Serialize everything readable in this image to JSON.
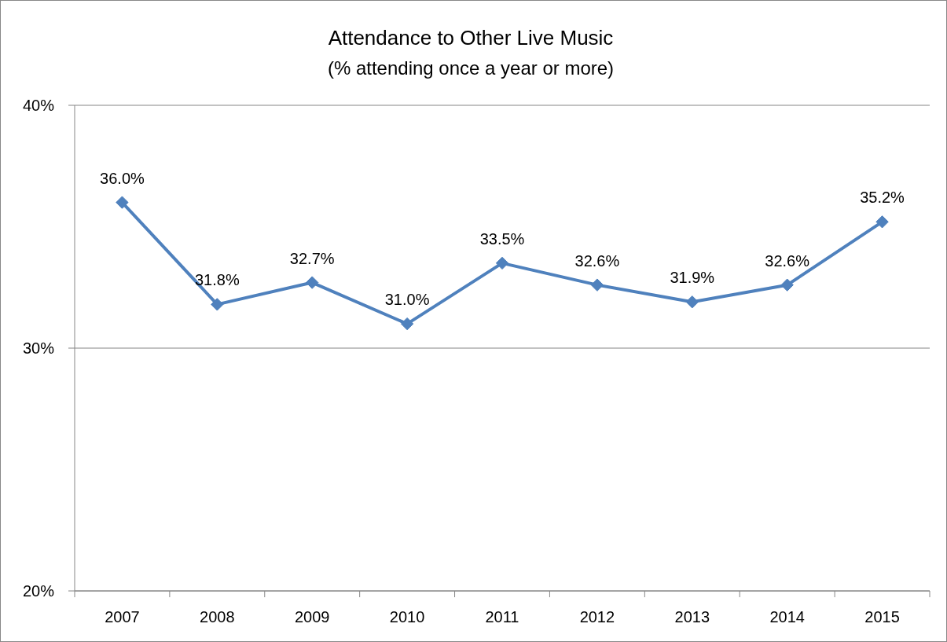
{
  "chart_data": {
    "type": "line",
    "title": "Attendance to Other Live Music",
    "subtitle": "(% attending once a year or more)",
    "categories": [
      "2007",
      "2008",
      "2009",
      "2010",
      "2011",
      "2012",
      "2013",
      "2014",
      "2015"
    ],
    "series": [
      {
        "color": "#4f81bd",
        "values": [
          36.0,
          31.8,
          32.7,
          31.0,
          33.5,
          32.6,
          31.9,
          32.6,
          35.2
        ],
        "value_labels": [
          "36.0%",
          "31.8%",
          "32.7%",
          "31.0%",
          "33.5%",
          "32.6%",
          "31.9%",
          "32.6%",
          "35.2%"
        ]
      }
    ],
    "ylim": [
      20,
      40
    ],
    "yticks": [
      {
        "value": 20,
        "label": "20%"
      },
      {
        "value": 30,
        "label": "30%"
      },
      {
        "value": 40,
        "label": "40%"
      }
    ],
    "grid": "y",
    "marker": "diamond",
    "line_style": "solid"
  }
}
